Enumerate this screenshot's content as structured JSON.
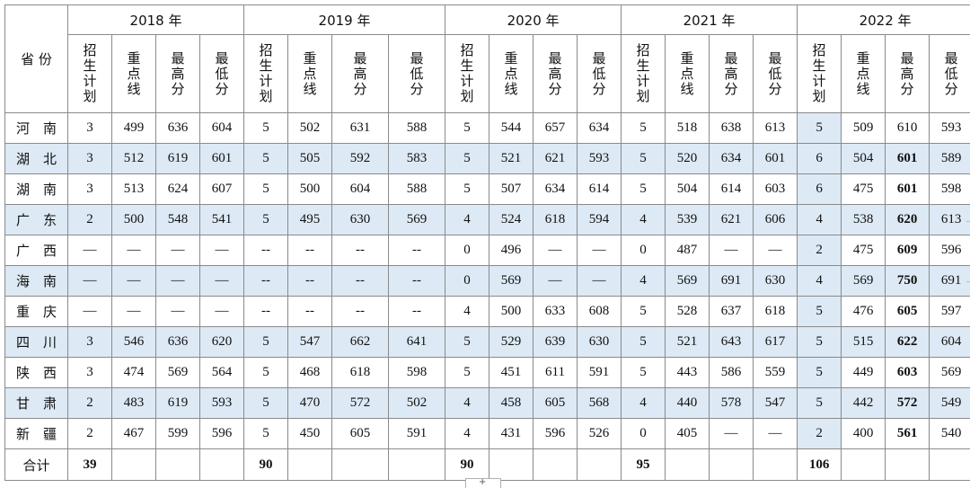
{
  "table": {
    "corner": "省 份",
    "years": [
      "2018 年",
      "2019 年",
      "2020 年",
      "2021 年",
      "2022 年"
    ],
    "subheaders": [
      [
        "招",
        "生",
        "计",
        "划"
      ],
      [
        "重",
        "点",
        "线"
      ],
      [
        "最",
        "高",
        "分"
      ],
      [
        "最",
        "低",
        "分"
      ]
    ],
    "rows": [
      {
        "province": "河　南",
        "cells": [
          "3",
          "499",
          "636",
          "604",
          "5",
          "502",
          "631",
          "588",
          "5",
          "544",
          "657",
          "634",
          "5",
          "518",
          "638",
          "613",
          "5",
          "509",
          "610",
          "593"
        ]
      },
      {
        "province": "湖　北",
        "cells": [
          "3",
          "512",
          "619",
          "601",
          "5",
          "505",
          "592",
          "583",
          "5",
          "521",
          "621",
          "593",
          "5",
          "520",
          "634",
          "601",
          "6",
          "504",
          "601",
          "589"
        ]
      },
      {
        "province": "湖　南",
        "cells": [
          "3",
          "513",
          "624",
          "607",
          "5",
          "500",
          "604",
          "588",
          "5",
          "507",
          "634",
          "614",
          "5",
          "504",
          "614",
          "603",
          "6",
          "475",
          "601",
          "598"
        ]
      },
      {
        "province": "广　东",
        "cells": [
          "2",
          "500",
          "548",
          "541",
          "5",
          "495",
          "630",
          "569",
          "4",
          "524",
          "618",
          "594",
          "4",
          "539",
          "621",
          "606",
          "4",
          "538",
          "620",
          "613"
        ]
      },
      {
        "province": "广　西",
        "cells": [
          "—",
          "—",
          "—",
          "—",
          "--",
          "--",
          "--",
          "--",
          "0",
          "496",
          "—",
          "—",
          "0",
          "487",
          "—",
          "—",
          "2",
          "475",
          "609",
          "596"
        ]
      },
      {
        "province": "海　南",
        "cells": [
          "—",
          "—",
          "—",
          "—",
          "--",
          "--",
          "--",
          "--",
          "0",
          "569",
          "—",
          "—",
          "4",
          "569",
          "691",
          "630",
          "4",
          "569",
          "750",
          "691"
        ]
      },
      {
        "province": "重　庆",
        "cells": [
          "—",
          "—",
          "—",
          "—",
          "--",
          "--",
          "--",
          "--",
          "4",
          "500",
          "633",
          "608",
          "5",
          "528",
          "637",
          "618",
          "5",
          "476",
          "605",
          "597"
        ]
      },
      {
        "province": "四　川",
        "cells": [
          "3",
          "546",
          "636",
          "620",
          "5",
          "547",
          "662",
          "641",
          "5",
          "529",
          "639",
          "630",
          "5",
          "521",
          "643",
          "617",
          "5",
          "515",
          "622",
          "604"
        ]
      },
      {
        "province": "陕　西",
        "cells": [
          "3",
          "474",
          "569",
          "564",
          "5",
          "468",
          "618",
          "598",
          "5",
          "451",
          "611",
          "591",
          "5",
          "443",
          "586",
          "559",
          "5",
          "449",
          "603",
          "569"
        ]
      },
      {
        "province": "甘　肃",
        "cells": [
          "2",
          "483",
          "619",
          "593",
          "5",
          "470",
          "572",
          "502",
          "4",
          "458",
          "605",
          "568",
          "4",
          "440",
          "578",
          "547",
          "5",
          "442",
          "572",
          "549"
        ]
      },
      {
        "province": "新　疆",
        "cells": [
          "2",
          "467",
          "599",
          "596",
          "5",
          "450",
          "605",
          "591",
          "4",
          "431",
          "596",
          "526",
          "0",
          "405",
          "—",
          "—",
          "2",
          "400",
          "561",
          "540"
        ]
      }
    ],
    "total": {
      "label": "合计",
      "values": [
        "39",
        "90",
        "90",
        "95",
        "106"
      ]
    }
  },
  "footer": {
    "tab_icon": "+"
  }
}
